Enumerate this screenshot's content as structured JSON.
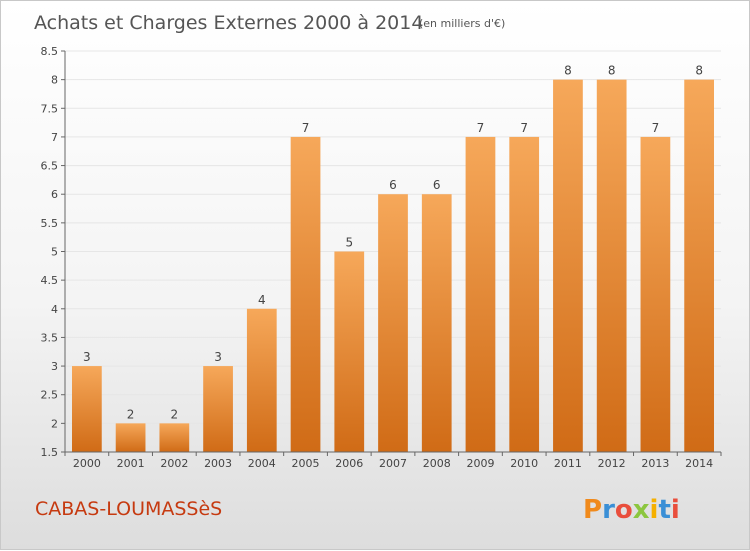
{
  "title": "Achats et Charges Externes 2000 à 2014",
  "subtitle": "(en milliers d'€)",
  "commune": "CABAS-LOUMASSèS",
  "brand": {
    "letters": [
      "P",
      "r",
      "o",
      "x",
      "i",
      "t",
      "i"
    ],
    "colors": [
      "#f08a1c",
      "#3a8fd6",
      "#e94e3c",
      "#8cc63f",
      "#f5b000",
      "#3a8fd6",
      "#e94e3c"
    ]
  },
  "colors": {
    "bar_top": "#f6a85a",
    "bar_bottom": "#d06b16",
    "axis": "#666666",
    "grid": "#e6e6e6",
    "title": "#555555",
    "commune": "#c63a10"
  },
  "chart_data": {
    "type": "bar",
    "title": "Achats et Charges Externes 2000 à 2014",
    "subtitle": "(en milliers d'€)",
    "categories": [
      "2000",
      "2001",
      "2002",
      "2003",
      "2004",
      "2005",
      "2006",
      "2007",
      "2008",
      "2009",
      "2010",
      "2011",
      "2012",
      "2013",
      "2014"
    ],
    "values": [
      3,
      2,
      2,
      3,
      4,
      7,
      5,
      6,
      6,
      7,
      7,
      8,
      8,
      7,
      8
    ],
    "data_labels": [
      "3",
      "2",
      "2",
      "3",
      "4",
      "7",
      "5",
      "6",
      "6",
      "7",
      "7",
      "8",
      "8",
      "7",
      "8"
    ],
    "ylim": [
      1.5,
      8.5
    ],
    "yticks": [
      "1.5",
      "2",
      "2.5",
      "3",
      "3.5",
      "4",
      "4.5",
      "5",
      "5.5",
      "6",
      "6.5",
      "7",
      "7.5",
      "8",
      "8.5"
    ],
    "xlabel": "",
    "ylabel": "",
    "grid": true,
    "legend": "none"
  }
}
